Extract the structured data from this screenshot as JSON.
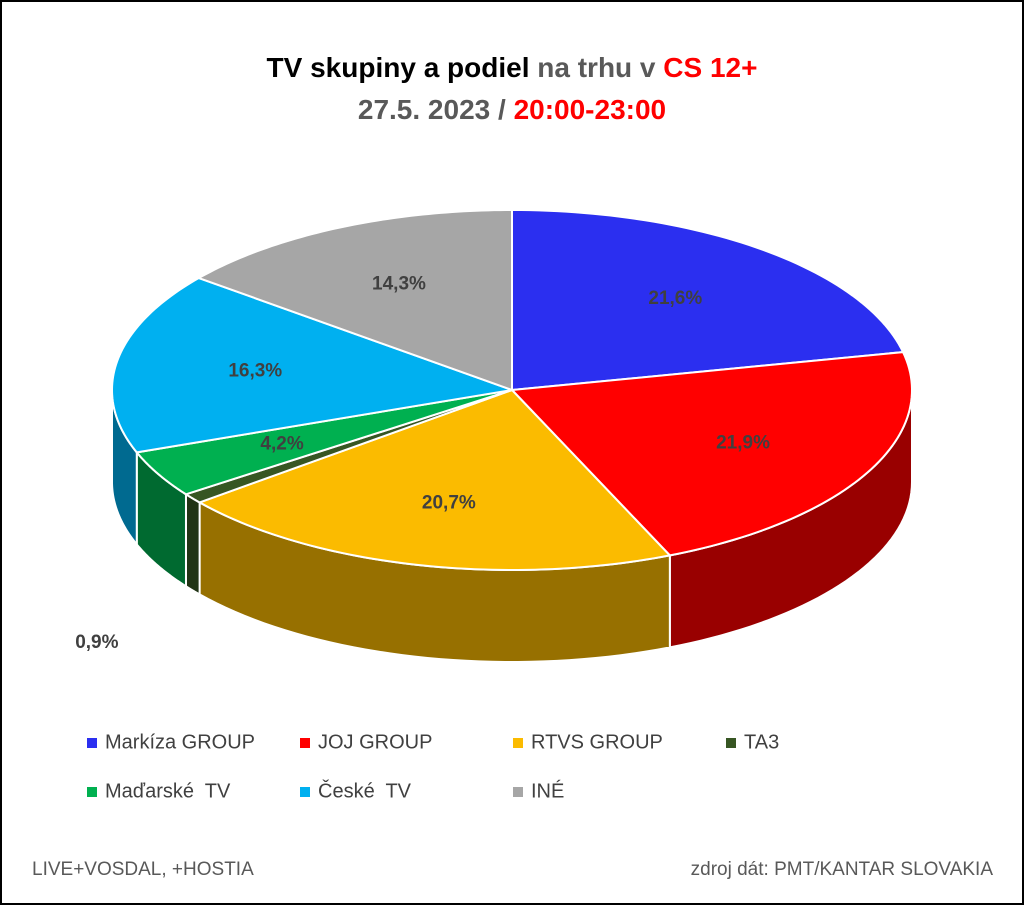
{
  "chart_data": {
    "type": "pie",
    "title_parts": [
      {
        "text": "TV skupiny a podiel",
        "color": "#000000"
      },
      {
        "text": "na trhu v",
        "color": "#595959"
      },
      {
        "text": "CS 12+",
        "color": "#ff0000"
      }
    ],
    "subtitle_parts": [
      {
        "text": "27.5. 2023 /",
        "color": "#595959"
      },
      {
        "text": "20:00-23:00",
        "color": "#ff0000"
      }
    ],
    "categories": [
      "Markíza GROUP",
      "JOJ GROUP",
      "RTVS GROUP",
      "TA3",
      "Maďarské  TV",
      "České  TV",
      "INÉ"
    ],
    "values": [
      21.6,
      21.9,
      20.7,
      0.9,
      4.2,
      16.3,
      14.3
    ],
    "value_labels": [
      "21,6%",
      "21,9%",
      "20,7%",
      "0,9%",
      "4,2%",
      "16,3%",
      "14,3%"
    ],
    "colors": [
      "#2b2ff0",
      "#ff0000",
      "#fbbb00",
      "#375623",
      "#00b050",
      "#00b0f0",
      "#a6a6a6"
    ],
    "footnote_left": "LIVE+VOSDAL, +HOSTIA",
    "footnote_right": "zdroj dát: PMT/KANTAR SLOVAKIA"
  }
}
